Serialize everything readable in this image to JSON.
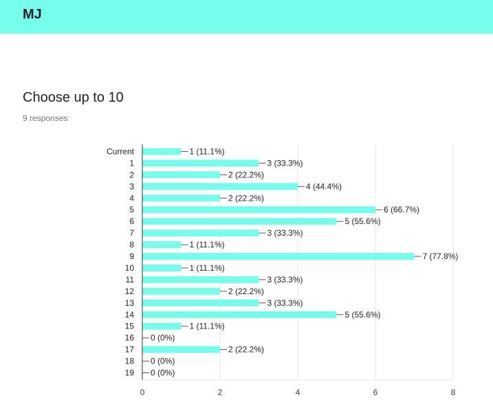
{
  "header": {
    "title": "MJ"
  },
  "question": {
    "title": "Choose up to 10",
    "responses": "9 responses"
  },
  "colors": {
    "header": "#77fcec",
    "bar": "#77fcec"
  },
  "chart_data": {
    "type": "bar",
    "orientation": "horizontal",
    "categories": [
      "Current",
      "1",
      "2",
      "3",
      "4",
      "5",
      "6",
      "7",
      "8",
      "9",
      "10",
      "11",
      "12",
      "13",
      "14",
      "15",
      "16",
      "17",
      "18",
      "19"
    ],
    "values": [
      1,
      3,
      2,
      4,
      2,
      6,
      5,
      3,
      1,
      7,
      1,
      3,
      2,
      3,
      5,
      1,
      0,
      2,
      0,
      0
    ],
    "value_labels": [
      "1 (11.1%)",
      "3 (33.3%)",
      "2 (22.2%)",
      "4 (44.4%)",
      "2 (22.2%)",
      "6 (66.7%)",
      "5 (55.6%)",
      "3 (33.3%)",
      "1 (11.1%)",
      "7 (77.8%)",
      "1 (11.1%)",
      "3 (33.3%)",
      "2 (22.2%)",
      "3 (33.3%)",
      "5 (55.6%)",
      "1 (11.1%)",
      "0 (0%)",
      "2 (22.2%)",
      "0 (0%)",
      "0 (0%)"
    ],
    "xlim": [
      0,
      8
    ],
    "xticks": [
      "0",
      "2",
      "4",
      "6",
      "8"
    ],
    "grid": true
  }
}
